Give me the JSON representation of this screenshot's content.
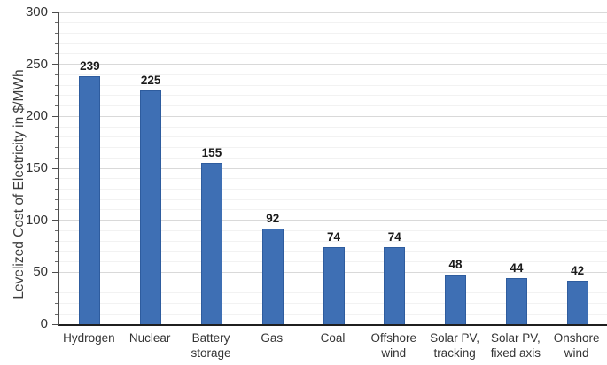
{
  "chart_data": {
    "type": "bar",
    "title": "",
    "xlabel": "",
    "ylabel": "Levelized Cost of Electricity in $/MWh",
    "categories": [
      "Hydrogen",
      "Nuclear",
      "Battery\nstorage",
      "Gas",
      "Coal",
      "Offshore\nwind",
      "Solar PV,\ntracking",
      "Solar PV,\nfixed axis",
      "Onshore\nwind"
    ],
    "values": [
      239,
      225,
      155,
      92,
      74,
      74,
      48,
      44,
      42
    ],
    "ylim": [
      0,
      300
    ],
    "y_ticks_major": [
      0,
      50,
      100,
      150,
      200,
      250,
      300
    ],
    "y_minor_step": 10,
    "grid": "horizontal-minor-and-major",
    "legend": "none",
    "bar_value_labels": true,
    "colors": {
      "bar_fill": "#3e6fb4",
      "bar_border": "#2e5c9e",
      "grid_minor": "#f2f2f2",
      "grid_major": "#d9d9d9",
      "axis_line": "#1f1f1f",
      "text": "#333333",
      "value_label": "#1a1a1a"
    }
  }
}
